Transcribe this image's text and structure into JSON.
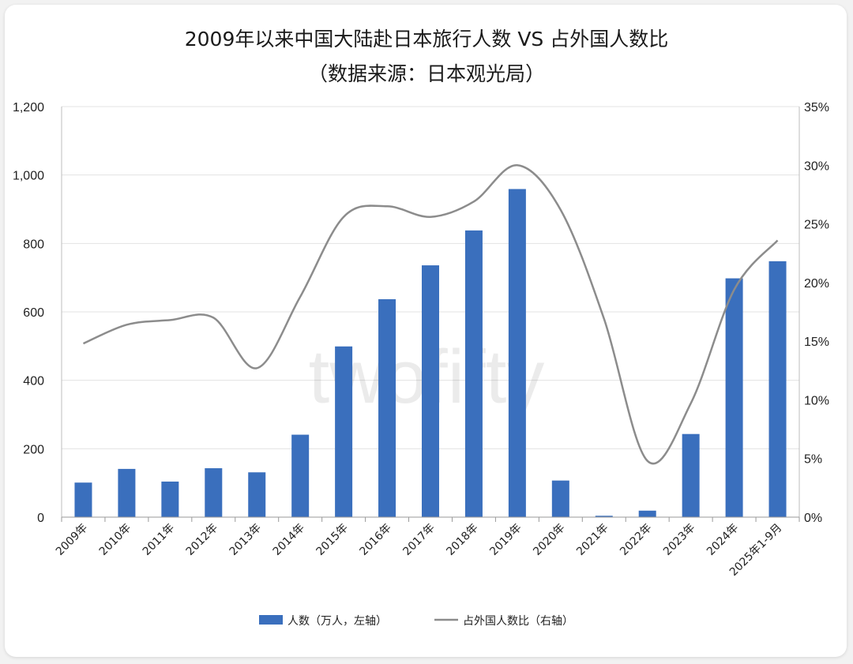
{
  "chart_data": {
    "type": "bar+line",
    "title": "2009年以来中国大陆赴日本旅行人数 VS 占外国人数比",
    "subtitle": "（数据来源：日本观光局）",
    "categories": [
      "2009年",
      "2010年",
      "2011年",
      "2012年",
      "2013年",
      "2014年",
      "2015年",
      "2016年",
      "2017年",
      "2018年",
      "2019年",
      "2020年",
      "2021年",
      "2022年",
      "2023年",
      "2024年",
      "2025年1-9月"
    ],
    "series": [
      {
        "name": "人数（万人，左轴）",
        "type": "bar",
        "axis": "left",
        "color": "#3a6fbd",
        "values": [
          101,
          141,
          104,
          143,
          131,
          241,
          499,
          637,
          736,
          838,
          959,
          107,
          4,
          19,
          243,
          698,
          748
        ]
      },
      {
        "name": "占外国人数比（右轴）",
        "type": "line",
        "axis": "right",
        "color": "#8c8c8c",
        "values": [
          14.8,
          16.4,
          16.8,
          17.0,
          12.7,
          18.8,
          25.6,
          26.5,
          25.6,
          26.9,
          30.0,
          26.2,
          16.9,
          4.8,
          9.7,
          19.4,
          23.6
        ]
      }
    ],
    "y_left": {
      "min": 0,
      "max": 1200,
      "ticks": [
        "0",
        "200",
        "400",
        "600",
        "800",
        "1,000",
        "1,200"
      ]
    },
    "y_right": {
      "min": 0,
      "max": 35,
      "ticks": [
        "0%",
        "5%",
        "10%",
        "15%",
        "20%",
        "25%",
        "30%",
        "35%"
      ]
    },
    "grid": true,
    "legend_position": "bottom",
    "watermark": "twofifty"
  }
}
